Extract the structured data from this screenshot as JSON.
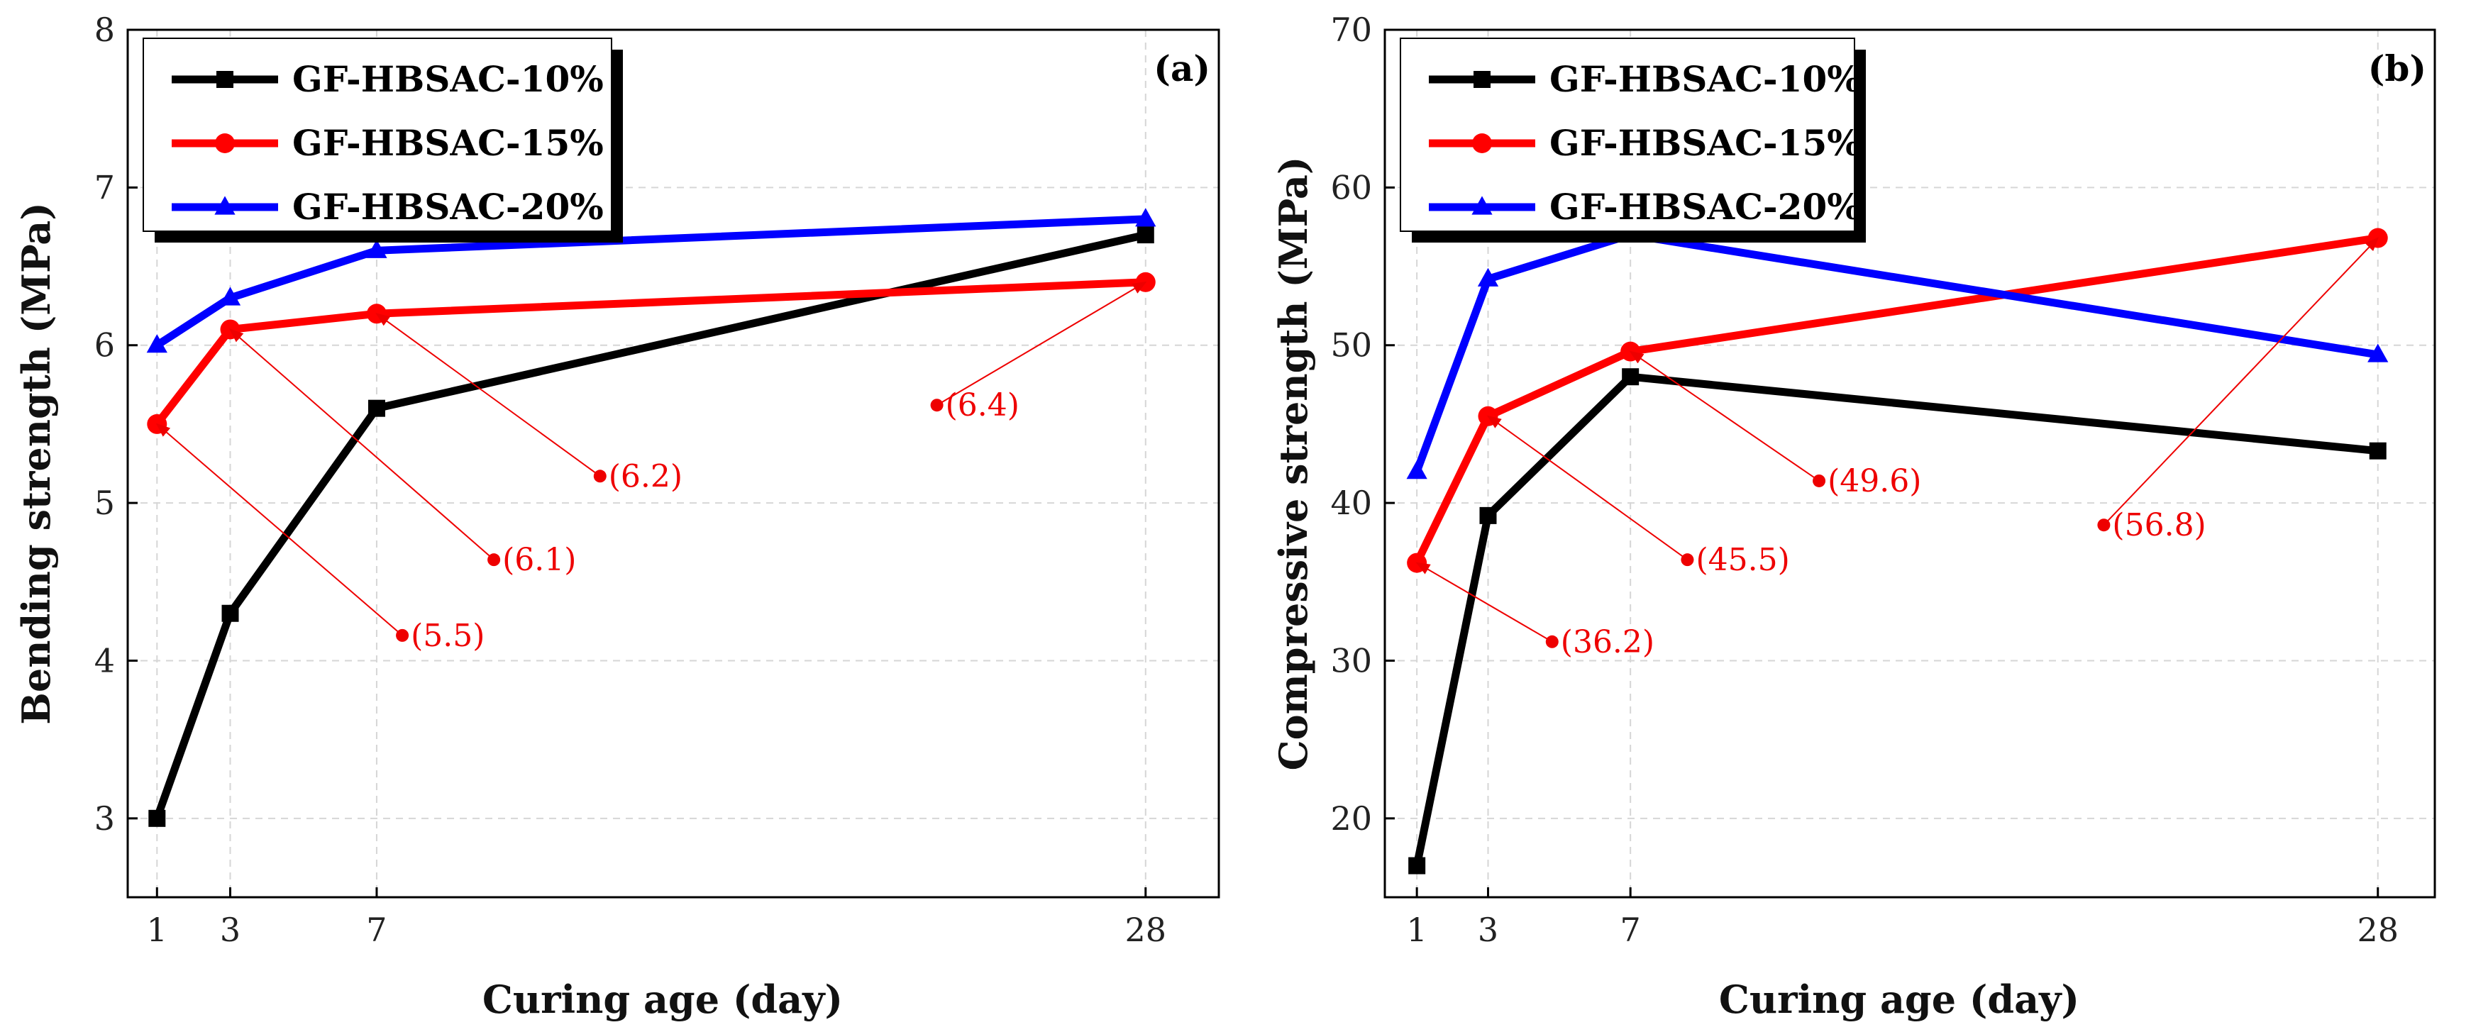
{
  "chart_data": [
    {
      "type": "line",
      "panel_label": "(a)",
      "xlabel": "Curing age (day)",
      "ylabel": "Bending strength (MPa)",
      "x": [
        1,
        3,
        7,
        28
      ],
      "x_ticks": [
        "1",
        "3",
        "7",
        "28"
      ],
      "xlim": [
        0.2,
        30
      ],
      "ylim": [
        2.5,
        8
      ],
      "y_ticks": [
        "3",
        "4",
        "5",
        "6",
        "7",
        "8"
      ],
      "grid": true,
      "legend_position": "top-left",
      "series": [
        {
          "name": "GF-HBSAC-10%",
          "color": "#000000",
          "marker": "square",
          "values": [
            3.0,
            4.3,
            5.6,
            6.7
          ]
        },
        {
          "name": "GF-HBSAC-15%",
          "color": "#ff0000",
          "marker": "circle",
          "values": [
            5.5,
            6.1,
            6.2,
            6.4
          ]
        },
        {
          "name": "GF-HBSAC-20%",
          "color": "#0000ff",
          "marker": "triangle",
          "values": [
            6.0,
            6.3,
            6.6,
            6.8
          ]
        }
      ],
      "annotations": [
        {
          "label": "(5.5)",
          "from": [
            1,
            5.5
          ],
          "to": [
            7.7,
            4.16
          ]
        },
        {
          "label": "(6.1)",
          "from": [
            3,
            6.1
          ],
          "to": [
            10.2,
            4.64
          ]
        },
        {
          "label": "(6.2)",
          "from": [
            7,
            6.2
          ],
          "to": [
            13.1,
            5.17
          ]
        },
        {
          "label": "(6.4)",
          "from": [
            28,
            6.4
          ],
          "to": [
            22.3,
            5.62
          ]
        }
      ]
    },
    {
      "type": "line",
      "panel_label": "(b)",
      "xlabel": "Curing age (day)",
      "ylabel": "Compressive strength (MPa)",
      "x": [
        1,
        3,
        7,
        28
      ],
      "x_ticks": [
        "1",
        "3",
        "7",
        "28"
      ],
      "xlim": [
        0.1,
        29.6
      ],
      "ylim": [
        15,
        70
      ],
      "y_ticks": [
        "20",
        "30",
        "40",
        "50",
        "60",
        "70"
      ],
      "grid": true,
      "legend_position": "top-left",
      "series": [
        {
          "name": "GF-HBSAC-10%",
          "color": "#000000",
          "marker": "square",
          "values": [
            17.0,
            39.2,
            48.0,
            43.3
          ]
        },
        {
          "name": "GF-HBSAC-15%",
          "color": "#ff0000",
          "marker": "circle",
          "values": [
            36.2,
            45.5,
            49.6,
            56.8
          ]
        },
        {
          "name": "GF-HBSAC-20%",
          "color": "#0000ff",
          "marker": "triangle",
          "values": [
            42.0,
            54.2,
            57.0,
            49.4
          ]
        }
      ],
      "annotations": [
        {
          "label": "(36.2)",
          "from": [
            1,
            36.2
          ],
          "to": [
            4.8,
            31.2
          ]
        },
        {
          "label": "(45.5)",
          "from": [
            3,
            45.5
          ],
          "to": [
            8.6,
            36.4
          ]
        },
        {
          "label": "(49.6)",
          "from": [
            7,
            49.6
          ],
          "to": [
            12.3,
            41.4
          ]
        },
        {
          "label": "(56.8)",
          "from": [
            28,
            56.8
          ],
          "to": [
            20.3,
            38.6
          ]
        }
      ]
    }
  ]
}
